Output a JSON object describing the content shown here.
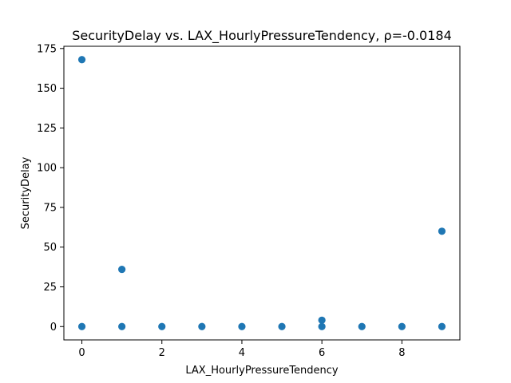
{
  "chart_data": {
    "type": "scatter",
    "title": "SecurityDelay vs. LAX_HourlyPressureTendency, ρ=-0.0184",
    "xlabel": "LAX_HourlyPressureTendency",
    "ylabel": "SecurityDelay",
    "xlim": [
      -0.45,
      9.45
    ],
    "ylim": [
      -8.4,
      176.4
    ],
    "xticks": [
      0,
      2,
      4,
      6,
      8
    ],
    "yticks": [
      0,
      25,
      50,
      75,
      100,
      125,
      150,
      175
    ],
    "grid": false,
    "marker_color": "#1f77b4",
    "points": [
      {
        "x": 0,
        "y": 168
      },
      {
        "x": 0,
        "y": 0
      },
      {
        "x": 1,
        "y": 36
      },
      {
        "x": 1,
        "y": 0
      },
      {
        "x": 2,
        "y": 0
      },
      {
        "x": 3,
        "y": 0
      },
      {
        "x": 4,
        "y": 0
      },
      {
        "x": 5,
        "y": 0
      },
      {
        "x": 6,
        "y": 4
      },
      {
        "x": 6,
        "y": 0
      },
      {
        "x": 7,
        "y": 0
      },
      {
        "x": 8,
        "y": 0
      },
      {
        "x": 9,
        "y": 60
      },
      {
        "x": 9,
        "y": 0
      }
    ]
  }
}
